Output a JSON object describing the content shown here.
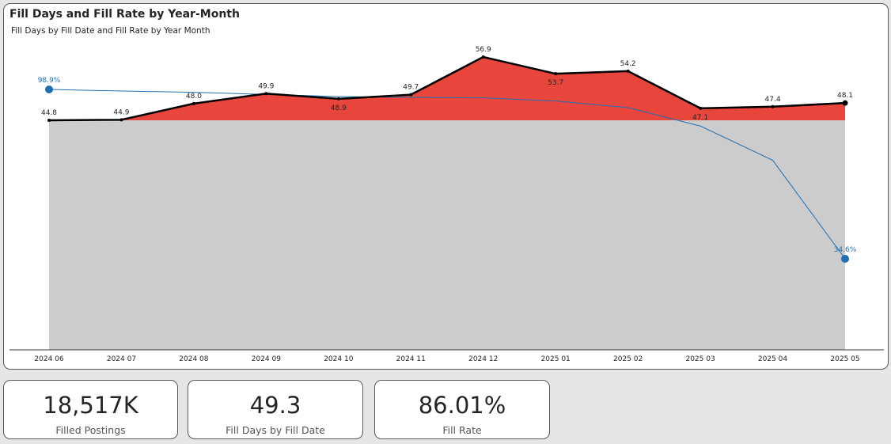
{
  "chart": {
    "title": "Fill Days and Fill Rate by Year-Month",
    "subtitle": "Fill Days by Fill Date and Fill Rate by Year Month"
  },
  "chart_data": {
    "type": "area",
    "categories": [
      "2024 06",
      "2024 07",
      "2024 08",
      "2024 09",
      "2024 10",
      "2024 11",
      "2024 12",
      "2025 01",
      "2025 02",
      "2025 03",
      "2025 04",
      "2025 05"
    ],
    "baseline": 44.8,
    "series": [
      {
        "type": "area-line",
        "values": [
          44.8,
          44.9,
          48.0,
          49.9,
          48.9,
          49.7,
          56.9,
          53.7,
          54.2,
          47.1,
          47.4,
          48.1
        ],
        "labels": [
          "44.8",
          "44.9",
          "48.0",
          "49.9",
          "48.9",
          "49.7",
          "56.9",
          "53.7",
          "54.2",
          "47.1",
          "47.4",
          "48.1"
        ],
        "label_below": [
          false,
          false,
          false,
          false,
          true,
          false,
          false,
          true,
          false,
          true,
          false,
          false
        ],
        "color": "#000000",
        "fill_above": "#e8453c",
        "fill_below": "#cccccc"
      },
      {
        "type": "line",
        "values": [
          98.9,
          98.3,
          97.8,
          97.0,
          96.2,
          95.9,
          95.7,
          94.5,
          92.0,
          85.0,
          72.0,
          34.6
        ],
        "labels": [
          "98.9%",
          "",
          "",
          "",
          "",
          "",
          "",
          "",
          "",
          "",
          "",
          "34.6%"
        ],
        "color": "#1f6fb2"
      }
    ],
    "left_axis_range": [
      0,
      60
    ],
    "right_axis_range": [
      0,
      100
    ]
  },
  "kpis": [
    {
      "value": "18,517K",
      "label": "Filled Postings"
    },
    {
      "value": "49.3",
      "label": "Fill Days by Fill Date"
    },
    {
      "value": "86.01%",
      "label": "Fill Rate"
    }
  ]
}
